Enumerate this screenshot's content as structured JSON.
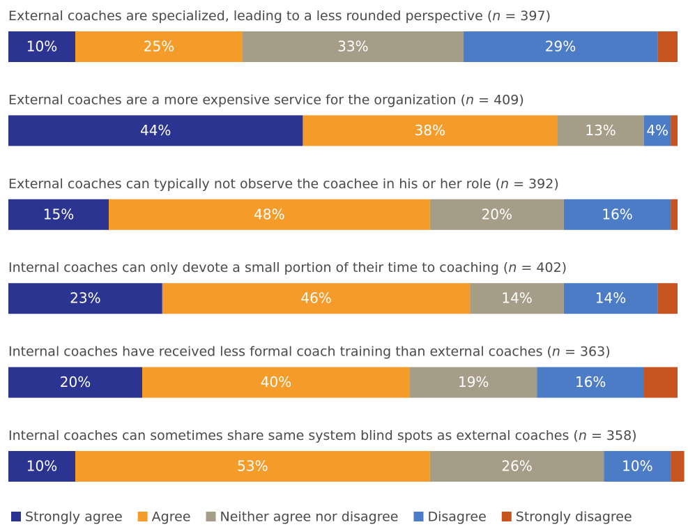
{
  "chart_data": {
    "type": "stacked-bar",
    "categories": [
      "External coaches are specialized, leading to a less rounded perspective (n = 397)",
      "External coaches are a more expensive service for the organization (n = 409)",
      "External coaches can typically not observe the coachee in his or her role (n = 392)",
      "Internal coaches can only devote a small portion of their time to coaching (n = 402)",
      "Internal coaches have received less formal coach training than external coaches (n = 363)",
      "Internal coaches can sometimes share same system blind spots as external coaches (n = 358)"
    ],
    "xlim": [
      0,
      100
    ],
    "legend": "bottom",
    "series": [
      {
        "name": "Strongly agree",
        "color": "#2b3491",
        "values": [
          10,
          44,
          15,
          23,
          20,
          10
        ],
        "value_labels": [
          "10%",
          "44%",
          "15%",
          "23%",
          "20%",
          "10%"
        ]
      },
      {
        "name": "Agree",
        "color": "#f59b2a",
        "values": [
          25,
          38,
          48,
          46,
          40,
          53
        ],
        "value_labels": [
          "25%",
          "38%",
          "48%",
          "46%",
          "40%",
          "53%"
        ]
      },
      {
        "name": "Neither agree nor disagree",
        "color": "#a59d87",
        "values": [
          33,
          13,
          20,
          14,
          19,
          26
        ],
        "value_labels": [
          "33%",
          "13%",
          "20%",
          "14%",
          "19%",
          "26%"
        ]
      },
      {
        "name": "Disagree",
        "color": "#4d7cc7",
        "values": [
          29,
          4,
          16,
          14,
          16,
          10
        ],
        "value_labels": [
          "29%",
          "4%",
          "16%",
          "14%",
          "16%",
          "10%"
        ]
      },
      {
        "name": "Strongly disagree",
        "color": "#c8541f",
        "values": [
          3,
          1,
          1,
          3,
          5,
          2
        ]
      }
    ]
  }
}
